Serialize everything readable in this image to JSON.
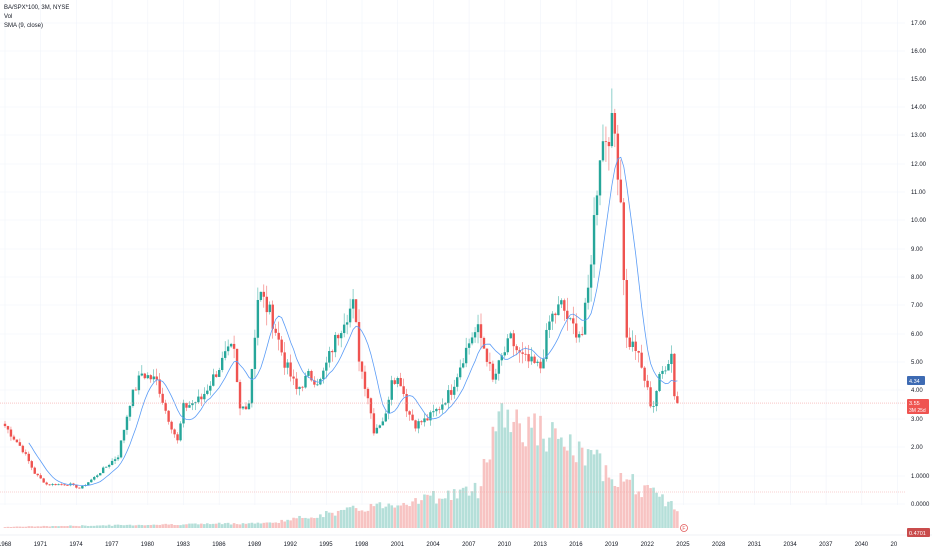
{
  "legend": {
    "symbol": "BA/SPX*100, 3M, NYSE",
    "vol": "Vol",
    "sma": "SMA (9, close)"
  },
  "price_badges": {
    "sma_value": "4.34",
    "last_price": "3.55",
    "countdown": "3M 25d",
    "volume_value": "0.4701"
  },
  "event_marker": "F",
  "colors": {
    "up": "#26a69a",
    "down": "#ef5350",
    "sma": "#5b9cf6",
    "sma_badge": "#3e6bb3",
    "vol_up": "#b5dfd9",
    "vol_down": "#f7c3c2",
    "grid": "#f0f3fa",
    "price_line": "#f5a3a3"
  },
  "chart_data": {
    "type": "candlestick",
    "title": "BA/SPX*100",
    "interval": "3M",
    "y_scale": "log",
    "ylim": [
      0,
      17
    ],
    "y_ticks": [
      "0.0000",
      "1.0000",
      "2.00",
      "3.00",
      "4.00",
      "5.00",
      "6.00",
      "7.00",
      "8.00",
      "9.00",
      "10.00",
      "11.00",
      "12.00",
      "13.00",
      "14.00",
      "15.00",
      "16.00",
      "17.00"
    ],
    "x_ticks": [
      "1968",
      "1971",
      "1974",
      "1977",
      "1980",
      "1983",
      "1986",
      "1989",
      "1992",
      "1995",
      "1998",
      "2001",
      "2004",
      "2007",
      "2010",
      "2013",
      "2016",
      "2019",
      "2022",
      "2025",
      "2028",
      "2031",
      "2034",
      "2037",
      "2040",
      "20"
    ],
    "series": [
      {
        "name": "BA/SPX*100",
        "close_keypoints": [
          {
            "x": 1968.0,
            "y": 2.75
          },
          {
            "x": 1969.5,
            "y": 1.9
          },
          {
            "x": 1970.5,
            "y": 1.1
          },
          {
            "x": 1971.5,
            "y": 0.7
          },
          {
            "x": 1973.5,
            "y": 0.7
          },
          {
            "x": 1974.3,
            "y": 0.55
          },
          {
            "x": 1975.5,
            "y": 0.95
          },
          {
            "x": 1977.5,
            "y": 1.7
          },
          {
            "x": 1978.5,
            "y": 3.6
          },
          {
            "x": 1979.5,
            "y": 4.6
          },
          {
            "x": 1980.8,
            "y": 4.3
          },
          {
            "x": 1981.5,
            "y": 3.3
          },
          {
            "x": 1982.5,
            "y": 2.2
          },
          {
            "x": 1983.0,
            "y": 3.4
          },
          {
            "x": 1984.5,
            "y": 3.7
          },
          {
            "x": 1986.5,
            "y": 5.2
          },
          {
            "x": 1987.2,
            "y": 5.5
          },
          {
            "x": 1987.7,
            "y": 3.3
          },
          {
            "x": 1988.5,
            "y": 3.6
          },
          {
            "x": 1989.3,
            "y": 7.5
          },
          {
            "x": 1990.5,
            "y": 6.5
          },
          {
            "x": 1991.5,
            "y": 5.0
          },
          {
            "x": 1992.5,
            "y": 4.0
          },
          {
            "x": 1993.5,
            "y": 4.5
          },
          {
            "x": 1994.5,
            "y": 4.3
          },
          {
            "x": 1995.5,
            "y": 5.5
          },
          {
            "x": 1996.5,
            "y": 6.6
          },
          {
            "x": 1997.3,
            "y": 7.0
          },
          {
            "x": 1997.8,
            "y": 5.0
          },
          {
            "x": 1998.5,
            "y": 3.8
          },
          {
            "x": 1999.0,
            "y": 2.6
          },
          {
            "x": 2000.0,
            "y": 3.1
          },
          {
            "x": 2000.5,
            "y": 4.5
          },
          {
            "x": 2001.3,
            "y": 4.3
          },
          {
            "x": 2001.8,
            "y": 3.3
          },
          {
            "x": 2002.5,
            "y": 2.8
          },
          {
            "x": 2003.5,
            "y": 3.0
          },
          {
            "x": 2004.5,
            "y": 3.4
          },
          {
            "x": 2005.5,
            "y": 4.0
          },
          {
            "x": 2006.5,
            "y": 5.2
          },
          {
            "x": 2007.3,
            "y": 6.0
          },
          {
            "x": 2007.8,
            "y": 6.1
          },
          {
            "x": 2008.5,
            "y": 5.2
          },
          {
            "x": 2009.0,
            "y": 4.3
          },
          {
            "x": 2009.8,
            "y": 5.2
          },
          {
            "x": 2010.5,
            "y": 5.8
          },
          {
            "x": 2011.3,
            "y": 5.2
          },
          {
            "x": 2012.0,
            "y": 5.0
          },
          {
            "x": 2013.0,
            "y": 4.8
          },
          {
            "x": 2013.8,
            "y": 6.5
          },
          {
            "x": 2014.8,
            "y": 7.0
          },
          {
            "x": 2015.5,
            "y": 6.3
          },
          {
            "x": 2016.5,
            "y": 6.0
          },
          {
            "x": 2017.0,
            "y": 7.5
          },
          {
            "x": 2017.5,
            "y": 10.0
          },
          {
            "x": 2018.0,
            "y": 12.5
          },
          {
            "x": 2018.8,
            "y": 13.3
          },
          {
            "x": 2019.3,
            "y": 13.0
          },
          {
            "x": 2019.8,
            "y": 10.5
          },
          {
            "x": 2020.2,
            "y": 5.8
          },
          {
            "x": 2021.0,
            "y": 5.5
          },
          {
            "x": 2021.8,
            "y": 4.3
          },
          {
            "x": 2022.4,
            "y": 3.3
          },
          {
            "x": 2022.9,
            "y": 4.3
          },
          {
            "x": 2023.5,
            "y": 4.9
          },
          {
            "x": 2024.0,
            "y": 5.3
          },
          {
            "x": 2024.3,
            "y": 3.6
          },
          {
            "x": 2024.5,
            "y": 3.55
          }
        ]
      },
      {
        "name": "SMA (9, close)",
        "last": 4.34
      },
      {
        "name": "Vol",
        "last": 0.4701
      }
    ]
  }
}
